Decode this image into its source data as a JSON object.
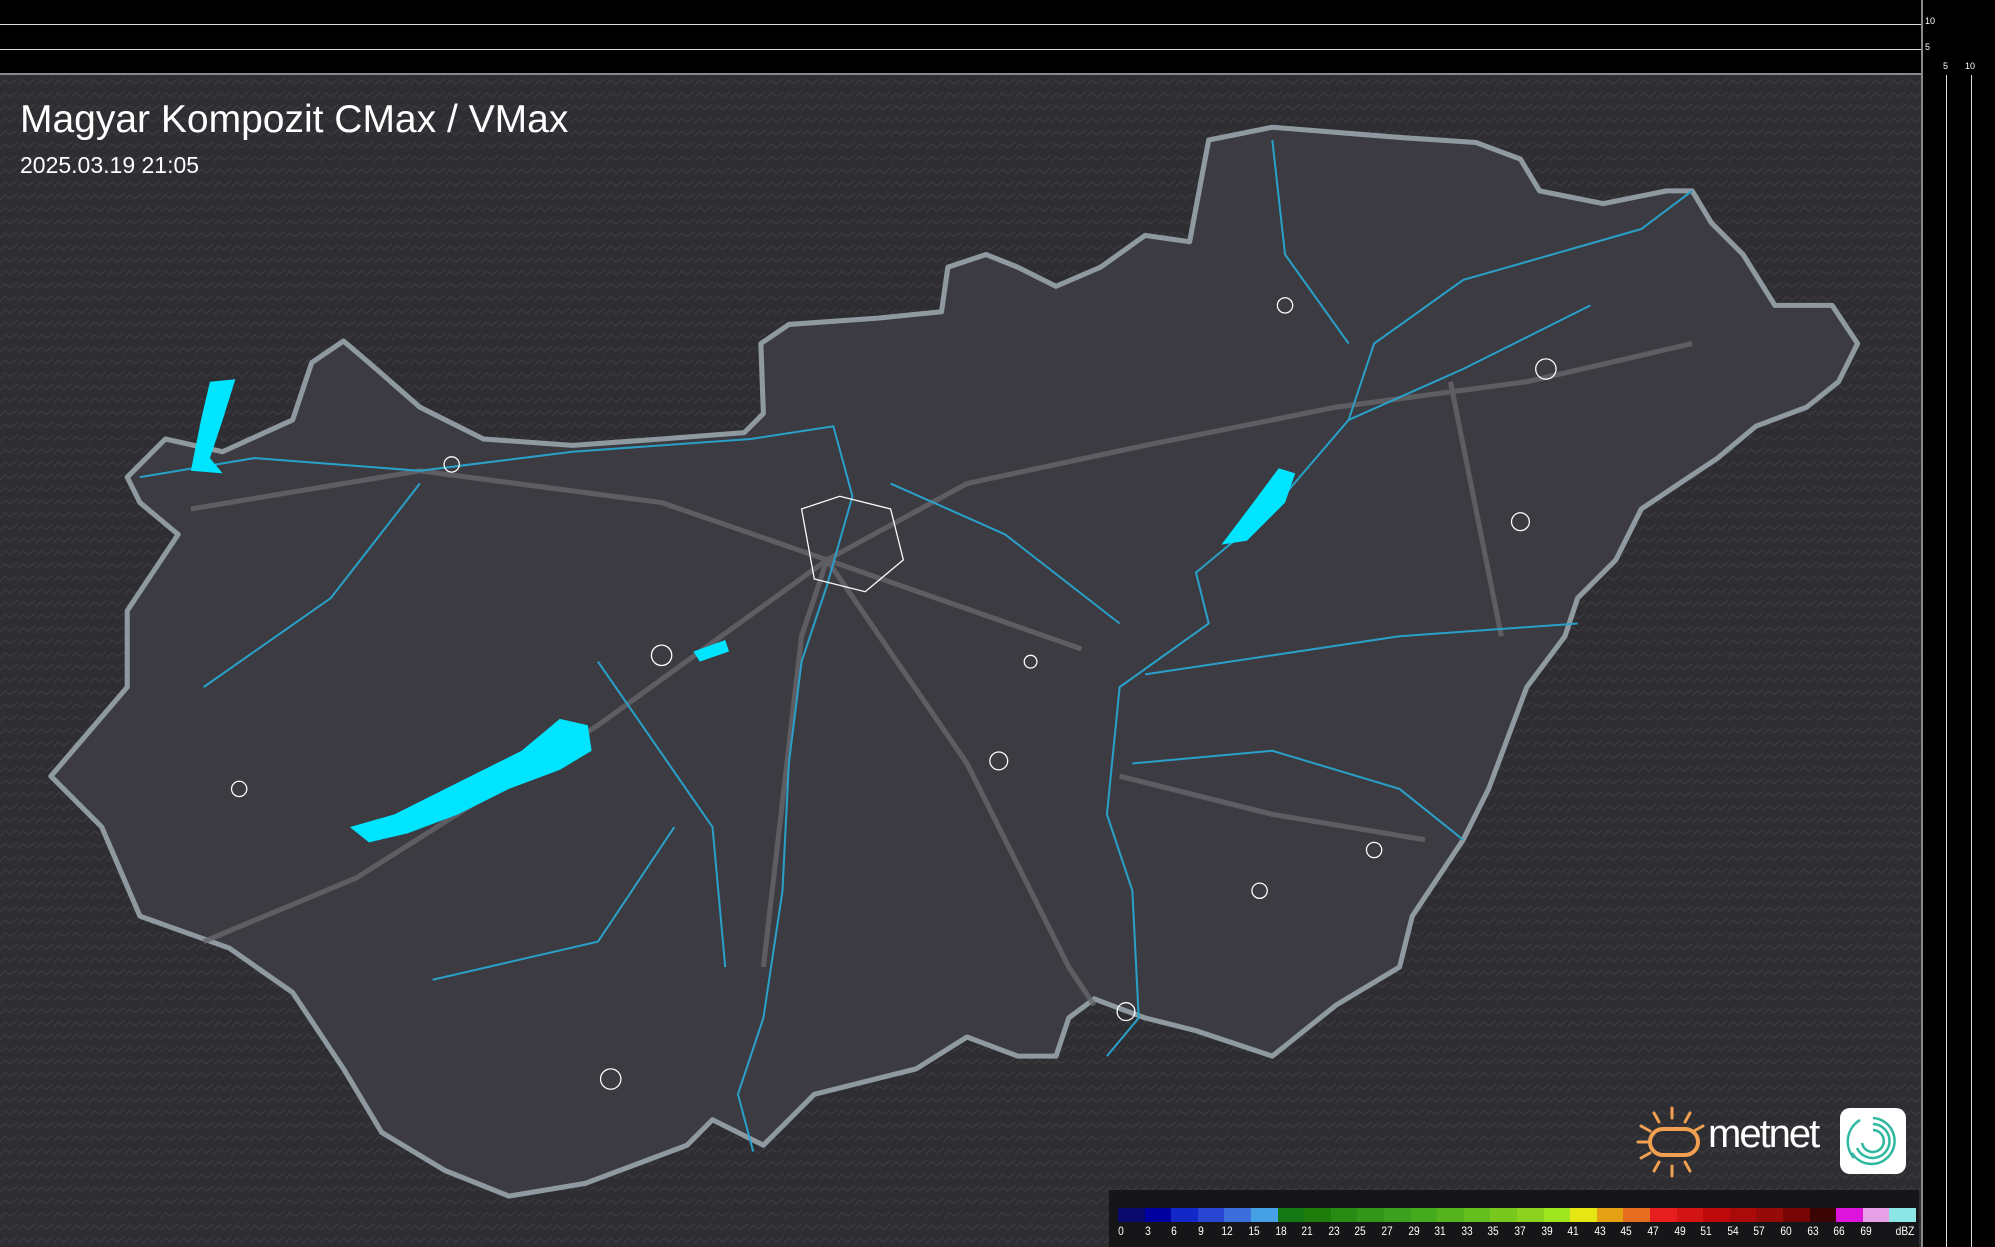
{
  "header": {
    "title": "Magyar Kompozit CMax / VMax",
    "timestamp": "2025.03.19 21:05"
  },
  "scale": {
    "vertical_labels": [
      "10",
      "5"
    ],
    "horizontal_labels": [
      "5",
      "10"
    ]
  },
  "map": {
    "background_color": "#2f2f33",
    "country_fill": "#3c3c42",
    "border_color": "#8f9aa0",
    "river_color": "#2aa0c8",
    "lake_color": "#00e5ff",
    "road_color": "#6a6a6e",
    "echoes": "none visible"
  },
  "legend": {
    "unit": "dBZ",
    "labels": [
      "0",
      "3",
      "6",
      "9",
      "12",
      "15",
      "18",
      "21",
      "23",
      "25",
      "27",
      "29",
      "31",
      "33",
      "35",
      "37",
      "39",
      "41",
      "43",
      "45",
      "47",
      "49",
      "51",
      "54",
      "57",
      "60",
      "63",
      "66",
      "69"
    ],
    "colors": [
      "#0a0a6e",
      "#0000a0",
      "#1428c8",
      "#2846d2",
      "#3c6edc",
      "#46a0e6",
      "#147814",
      "#1e7d0a",
      "#288c14",
      "#329619",
      "#3ca01e",
      "#46aa1e",
      "#55b41e",
      "#64be1e",
      "#78c81e",
      "#8cd21e",
      "#a0e61e",
      "#e6e614",
      "#e6a014",
      "#e66e1e",
      "#e61e1e",
      "#d21414",
      "#be0a0a",
      "#aa0a0a",
      "#960a0a",
      "#780505",
      "#3c0505",
      "#dc14dc",
      "#e6a0e6",
      "#8ce6e6"
    ]
  },
  "logo": {
    "text": "metnet",
    "sun_color": "#f0a050"
  }
}
